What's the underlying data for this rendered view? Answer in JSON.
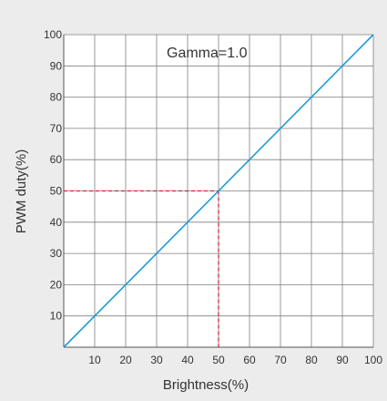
{
  "chart_data": {
    "type": "line",
    "title": "",
    "annotation": "Gamma=1.0",
    "xlabel": "Brightness(%)",
    "ylabel": "PWM duty(%)",
    "xlim": [
      0,
      100
    ],
    "ylim": [
      0,
      100
    ],
    "x_ticks": [
      10,
      20,
      30,
      40,
      50,
      60,
      70,
      80,
      90,
      100
    ],
    "y_ticks": [
      10,
      20,
      30,
      40,
      50,
      60,
      70,
      80,
      90,
      100
    ],
    "grid": true,
    "series": [
      {
        "x": [
          0,
          100
        ],
        "values": [
          0,
          100
        ],
        "color": "#1f9ad6"
      }
    ],
    "reference_lines": {
      "x": 50,
      "y": 50,
      "color": "#d9001b",
      "style": "dashed"
    }
  }
}
